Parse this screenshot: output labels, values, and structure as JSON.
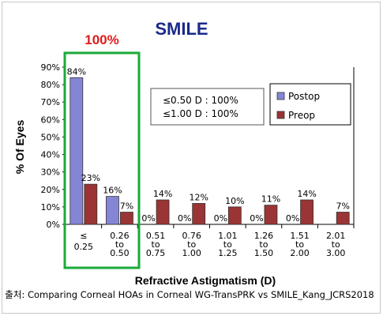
{
  "chart_data": {
    "type": "bar",
    "title": "SMILE",
    "highlight_label": "100%",
    "categories": [
      [
        "≤",
        "0.25"
      ],
      [
        "0.26",
        "to",
        "0.50"
      ],
      [
        "0.51",
        "to",
        "0.75"
      ],
      [
        "0.76",
        "to",
        "1.00"
      ],
      [
        "1.01",
        "to",
        "1.25"
      ],
      [
        "1.26",
        "to",
        "1.50"
      ],
      [
        "1.51",
        "to",
        "2.00"
      ],
      [
        "2.01",
        "to",
        "3.00"
      ]
    ],
    "series": [
      {
        "name": "Postop",
        "color": "#8585d6",
        "values": [
          84,
          16,
          0,
          0,
          0,
          0,
          0,
          0
        ],
        "labels": [
          "84%",
          "16%",
          "0%",
          "0%",
          "0%",
          "0%",
          "0%",
          ""
        ]
      },
      {
        "name": "Preop",
        "color": "#9b3434",
        "values": [
          23,
          7,
          14,
          12,
          10,
          11,
          14,
          7
        ],
        "labels": [
          "23%",
          "7%",
          "14%",
          "12%",
          "10%",
          "11%",
          "14%",
          "7%"
        ]
      }
    ],
    "ylabel": "% Of Eyes",
    "xlabel": "Refractive Astigmatism (D)",
    "ylim": [
      0,
      90
    ],
    "yticks": [
      "0%",
      "10%",
      "20%",
      "30%",
      "40%",
      "50%",
      "60%",
      "70%",
      "80%",
      "90%"
    ],
    "annotation": [
      "≤0.50 D : 100%",
      "≤1.00 D : 100%"
    ],
    "legend_position": "top-right",
    "grid": false
  },
  "source_note": "출처: Comparing Corneal HOAs in Corneal WG-TransPRK vs SMILE_Kang_JCRS2018",
  "colors": {
    "title": "#1a2a8a",
    "highlight": "#e01b1b",
    "highlight_box": "#1aaa3a"
  }
}
